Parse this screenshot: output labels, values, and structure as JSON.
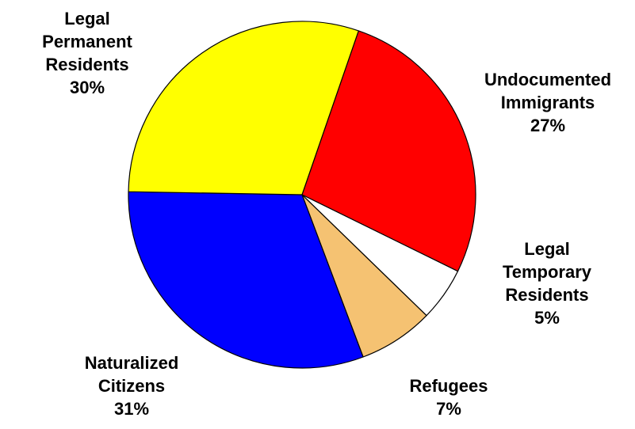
{
  "chart_data": {
    "type": "pie",
    "title": "",
    "start_angle_deg": 71,
    "direction": "clockwise",
    "slices": [
      {
        "label": [
          "Undocumented",
          "Immigrants"
        ],
        "value": 27,
        "display": "27%",
        "color": "#ff0000"
      },
      {
        "label": [
          "Legal",
          "Temporary",
          "Residents"
        ],
        "value": 5,
        "display": "5%",
        "color": "#ffffff"
      },
      {
        "label": [
          "Refugees"
        ],
        "value": 7,
        "display": "7%",
        "color": "#f5c272"
      },
      {
        "label": [
          "Naturalized",
          "Citizens"
        ],
        "value": 31,
        "display": "31%",
        "color": "#0000ff"
      },
      {
        "label": [
          "Legal",
          "Permanent",
          "Residents"
        ],
        "value": 30,
        "display": "30%",
        "color": "#ffff00"
      }
    ]
  }
}
